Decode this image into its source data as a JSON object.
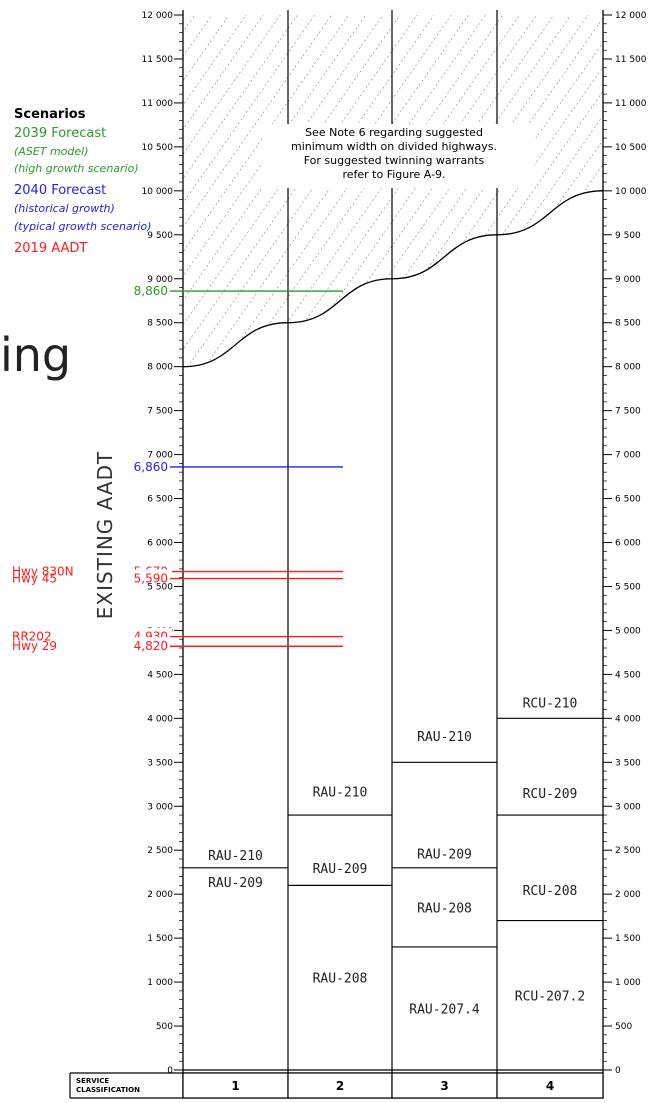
{
  "page_fragment": "ing",
  "legend": {
    "title": "Scenarios",
    "forecast_2039": "2039 Forecast",
    "forecast_2039_sub1": "(ASET model)",
    "forecast_2039_sub2": "(high growth scenario)",
    "forecast_2040": "2040 Forecast",
    "forecast_2040_sub1": "(historical growth)",
    "forecast_2040_sub2": "(typical growth scenario)",
    "aadt_2019": "2019 AADT"
  },
  "note": [
    "See Note 6 regarding suggested",
    "minimum width on divided highways.",
    "For suggested twinning warrants",
    "refer to Figure A-9."
  ],
  "colors": {
    "green": "#2e9a2e",
    "blue": "#2323e0",
    "red": "#ff1c1c",
    "line": "#000000"
  },
  "chart_data": {
    "type": "step",
    "ylabel": "EXISTING AADT",
    "ylim": [
      0,
      12000
    ],
    "y_ticks": [
      {
        "value": 0,
        "label": "0"
      },
      {
        "value": 500,
        "label": "500"
      },
      {
        "value": 1000,
        "label": "1 000"
      },
      {
        "value": 1500,
        "label": "1 500"
      },
      {
        "value": 2000,
        "label": "2 000"
      },
      {
        "value": 2500,
        "label": "2 500"
      },
      {
        "value": 3000,
        "label": "3 000"
      },
      {
        "value": 3500,
        "label": "3 500"
      },
      {
        "value": 4000,
        "label": "4 000"
      },
      {
        "value": 4500,
        "label": "4 500"
      },
      {
        "value": 5000,
        "label": "5 000"
      },
      {
        "value": 5500,
        "label": "5 500"
      },
      {
        "value": 6000,
        "label": "6 000"
      },
      {
        "value": 6500,
        "label": "6 500"
      },
      {
        "value": 7000,
        "label": "7 000"
      },
      {
        "value": 7500,
        "label": "7 500"
      },
      {
        "value": 8000,
        "label": "8 000"
      },
      {
        "value": 8500,
        "label": "8 500"
      },
      {
        "value": 9000,
        "label": "9 000"
      },
      {
        "value": 9500,
        "label": "9 500"
      },
      {
        "value": 10000,
        "label": "10 000"
      },
      {
        "value": 10500,
        "label": "10 500"
      },
      {
        "value": 11000,
        "label": "11 000"
      },
      {
        "value": 11500,
        "label": "11 500"
      },
      {
        "value": 12000,
        "label": "12 000"
      }
    ],
    "x_header": [
      "SERVICE",
      "CLASSIFICATION"
    ],
    "columns": [
      {
        "label": "1",
        "boundaries": [
          2300
        ],
        "bands": [
          {
            "label": "RAU-209",
            "position": "just-below-boundary",
            "value": 2300
          },
          {
            "label": "RAU-210",
            "position": "just-above-boundary",
            "value": 2300
          }
        ]
      },
      {
        "label": "2",
        "boundaries": [
          2100,
          2900
        ],
        "bands": [
          {
            "label": "RAU-208",
            "center": 1050
          },
          {
            "label": "RAU-209",
            "center": 2300
          },
          {
            "label": "RAU-210",
            "center": 3170
          }
        ]
      },
      {
        "label": "3",
        "boundaries": [
          1400,
          2300,
          3500
        ],
        "bands": [
          {
            "label": "RAU-207.4",
            "center": 700
          },
          {
            "label": "RAU-208",
            "center": 1850
          },
          {
            "label": "RAU-209",
            "center": 2460
          },
          {
            "label": "RAU-210",
            "center": 3800
          }
        ]
      },
      {
        "label": "4",
        "boundaries": [
          1700,
          2900,
          4000
        ],
        "bands": [
          {
            "label": "RCU-207.2",
            "center": 850
          },
          {
            "label": "RCU-208",
            "center": 2050
          },
          {
            "label": "RCU-209",
            "center": 3150
          },
          {
            "label": "RCU-210",
            "center": 4180
          }
        ]
      }
    ],
    "upper_limit_curve": [
      [
        0,
        8000
      ],
      [
        1,
        8500
      ],
      [
        2,
        9000
      ],
      [
        3,
        9500
      ],
      [
        4,
        10000
      ]
    ],
    "reference_lines": [
      {
        "label": "8,860",
        "value": 8860,
        "color": "green"
      },
      {
        "label": "6,860",
        "value": 6860,
        "color": "blue"
      },
      {
        "label": "5,670",
        "value": 5670,
        "color": "red",
        "highway": "Hwy 830N"
      },
      {
        "label": "5,590",
        "value": 5590,
        "color": "red",
        "highway": "Hwy 45"
      },
      {
        "label": "4,930",
        "value": 4930,
        "color": "red",
        "highway": "RR202"
      },
      {
        "label": "4,820",
        "value": 4820,
        "color": "red",
        "highway": "Hwy 29"
      }
    ]
  }
}
